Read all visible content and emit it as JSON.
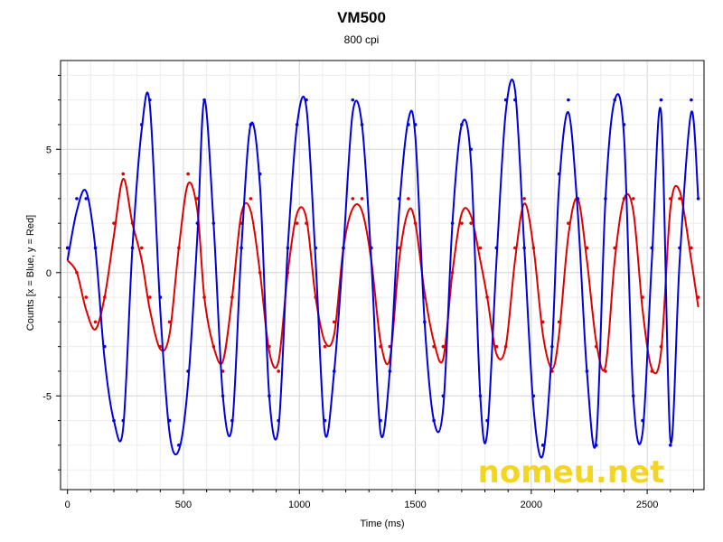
{
  "chart_data": {
    "type": "line",
    "title": "VM500",
    "subtitle": "800 cpi",
    "xlabel": "Time (ms)",
    "ylabel": "Counts [x = Blue, y = Red]",
    "xlim": [
      -30,
      2745
    ],
    "ylim": [
      -8.8,
      8.6
    ],
    "x_ticks": [
      0,
      500,
      1000,
      1500,
      2000,
      2500
    ],
    "y_ticks": [
      -5,
      0,
      5
    ],
    "grid": true,
    "series": [
      {
        "color": "#0000e0",
        "x": [
          0,
          40,
          80,
          120,
          160,
          200,
          240,
          280,
          320,
          355,
          400,
          440,
          480,
          520,
          560,
          590,
          630,
          670,
          710,
          750,
          790,
          830,
          870,
          910,
          950,
          990,
          1030,
          1070,
          1110,
          1150,
          1190,
          1230,
          1270,
          1310,
          1350,
          1390,
          1430,
          1470,
          1500,
          1540,
          1580,
          1620,
          1660,
          1700,
          1740,
          1780,
          1810,
          1850,
          1890,
          1930,
          1970,
          2010,
          2050,
          2090,
          2120,
          2160,
          2200,
          2240,
          2280,
          2320,
          2360,
          2400,
          2440,
          2480,
          2520,
          2560,
          2600,
          2640,
          2690,
          2720
        ],
        "y": [
          0.5,
          2.5,
          3.3,
          1.0,
          -3.5,
          -6.0,
          -6.3,
          1.0,
          5.8,
          6.8,
          -1.5,
          -6.5,
          -7.2,
          -4.5,
          1.5,
          7.0,
          2.0,
          -5.0,
          -6.2,
          1.0,
          6.0,
          3.5,
          -5.0,
          -6.3,
          1.0,
          6.0,
          6.7,
          0.5,
          -6.5,
          -4.0,
          1.0,
          6.5,
          6.0,
          0.5,
          -6.5,
          -4.0,
          2.5,
          6.2,
          5.5,
          -2.0,
          -6.0,
          -5.5,
          2.0,
          6.0,
          4.5,
          -5.0,
          -6.5,
          0.5,
          6.5,
          7.4,
          1.0,
          -5.5,
          -7.4,
          -3.0,
          3.5,
          6.5,
          2.5,
          -4.0,
          -6.8,
          3.0,
          7.0,
          5.5,
          -5.0,
          -6.5,
          0.5,
          6.5,
          -6.8,
          0.5,
          6.5,
          3.0
        ]
      },
      {
        "color": "#e00000",
        "x": [
          0,
          40,
          80,
          120,
          160,
          200,
          240,
          280,
          320,
          355,
          400,
          440,
          480,
          520,
          560,
          590,
          630,
          670,
          710,
          750,
          790,
          830,
          870,
          910,
          950,
          990,
          1030,
          1070,
          1110,
          1150,
          1190,
          1230,
          1270,
          1310,
          1350,
          1390,
          1430,
          1470,
          1500,
          1540,
          1580,
          1620,
          1660,
          1700,
          1740,
          1780,
          1810,
          1850,
          1890,
          1930,
          1970,
          2010,
          2050,
          2090,
          2120,
          2160,
          2200,
          2240,
          2280,
          2320,
          2360,
          2400,
          2440,
          2480,
          2520,
          2560,
          2600,
          2640,
          2690,
          2720
        ],
        "y": [
          0.5,
          0.0,
          -1.5,
          -2.3,
          -1.0,
          1.5,
          3.8,
          2.0,
          0.5,
          -1.5,
          -3.1,
          -2.5,
          1.0,
          3.6,
          2.5,
          -1.0,
          -3.0,
          -3.6,
          -1.0,
          2.4,
          2.5,
          0.0,
          -3.2,
          -3.6,
          0.0,
          2.4,
          2.2,
          -1.0,
          -2.8,
          -2.5,
          1.0,
          2.6,
          2.5,
          0.5,
          -2.8,
          -3.5,
          0.5,
          2.5,
          2.0,
          -0.8,
          -2.8,
          -3.5,
          0.0,
          2.4,
          2.3,
          0.5,
          -1.0,
          -3.3,
          -3.0,
          0.5,
          2.8,
          1.0,
          -2.5,
          -3.9,
          -2.5,
          1.5,
          3.0,
          0.5,
          -2.8,
          -3.8,
          0.5,
          3.0,
          2.5,
          -1.5,
          -3.9,
          -3.2,
          2.6,
          3.3,
          0.5,
          -1.4
        ]
      }
    ]
  },
  "watermark": "nomeu.net"
}
